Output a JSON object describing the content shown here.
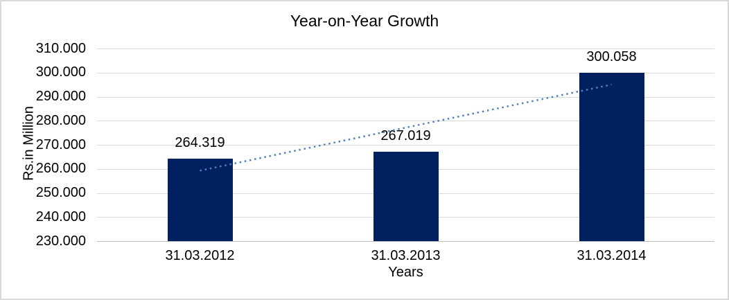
{
  "chart_data": {
    "type": "bar",
    "title": "Year-on-Year Growth",
    "xlabel": "Years",
    "ylabel": "Rs.in Million",
    "categories": [
      "31.03.2012",
      "31.03.2013",
      "31.03.2014"
    ],
    "values": [
      264319,
      267019,
      300058
    ],
    "value_labels": [
      "264.319",
      "267.019",
      "300.058"
    ],
    "ylim": [
      230000,
      310000
    ],
    "ytick_step": 10000,
    "ytick_labels": [
      "310.000",
      "300.000",
      "290.000",
      "280.000",
      "270.000",
      "260.000",
      "250.000",
      "240.000",
      "230.000"
    ],
    "grid": true,
    "legend": false,
    "trendline": {
      "type": "linear",
      "style": "dotted"
    },
    "colors": {
      "bar": "#002060",
      "trendline": "#4f81bd",
      "gridline": "#d9d9d9",
      "axis_line": "#bfbfbf",
      "text": "#000000",
      "border": "#d9d9d9",
      "background": "#ffffff"
    }
  }
}
